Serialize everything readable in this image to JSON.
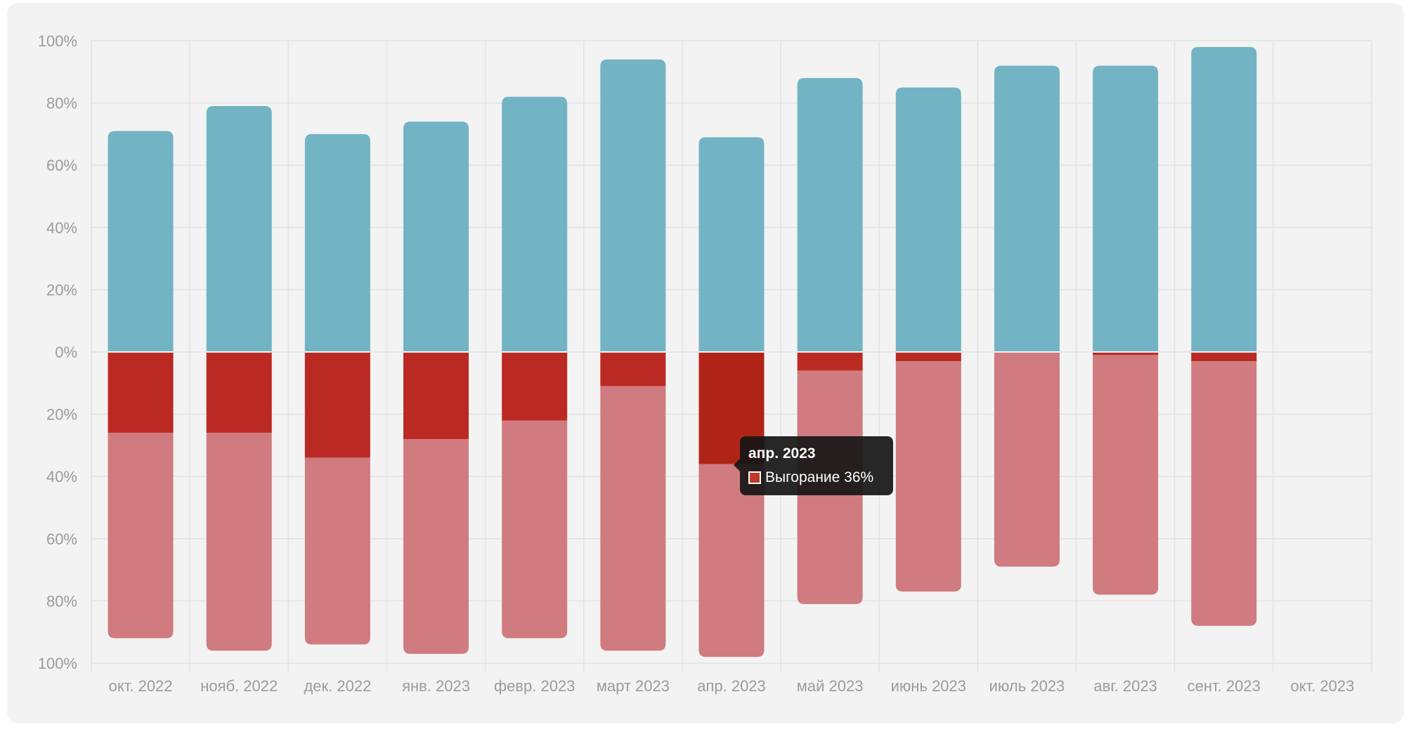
{
  "chart_data": {
    "type": "bar",
    "stacked": true,
    "diverging": true,
    "title": "",
    "xlabel": "",
    "ylabel": "",
    "categories": [
      "окт. 2022",
      "нояб. 2022",
      "дек. 2022",
      "янв. 2023",
      "февр. 2023",
      "март 2023",
      "апр. 2023",
      "май 2023",
      "июнь 2023",
      "июль 2023",
      "авг. 2023",
      "сент. 2023",
      "окт. 2023"
    ],
    "y_tick_labels": [
      "100%",
      "80%",
      "60%",
      "40%",
      "20%",
      "0%",
      "20%",
      "40%",
      "60%",
      "80%",
      "100%"
    ],
    "ylim": [
      -100,
      100
    ],
    "grid": true,
    "series": [
      {
        "color": "#72b3c4",
        "values": [
          71,
          79,
          70,
          74,
          82,
          94,
          69,
          88,
          85,
          92,
          92,
          98,
          null
        ]
      },
      {
        "name": "Выгорание",
        "color": "#bb2a22",
        "values": [
          -26,
          -26,
          -34,
          -28,
          -22,
          -11,
          -36,
          -6,
          -3,
          0,
          -1,
          -3,
          null
        ]
      },
      {
        "color": "#cf7b7f",
        "values": [
          -66,
          -70,
          -60,
          -69,
          -70,
          -85,
          -62,
          -75,
          -74,
          -69,
          -77,
          -85,
          null
        ]
      }
    ],
    "highlight": {
      "category_index": 6,
      "series_index": 1,
      "color": "#b02418"
    }
  },
  "tooltip": {
    "title": "апр. 2023",
    "label": "Выгорание 36%",
    "swatch_color": "#c0392b"
  }
}
